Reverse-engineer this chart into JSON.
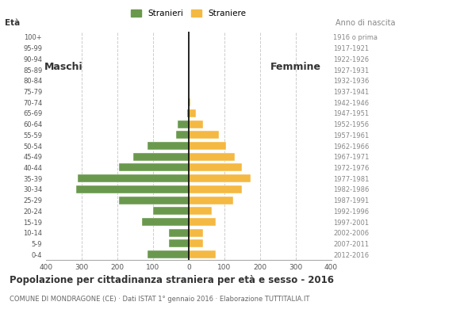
{
  "age_groups": [
    "0-4",
    "5-9",
    "10-14",
    "15-19",
    "20-24",
    "25-29",
    "30-34",
    "35-39",
    "40-44",
    "45-49",
    "50-54",
    "55-59",
    "60-64",
    "65-69",
    "70-74",
    "75-79",
    "80-84",
    "85-89",
    "90-94",
    "95-99",
    "100+"
  ],
  "birth_years": [
    "2012-2016",
    "2007-2011",
    "2002-2006",
    "1997-2001",
    "1992-1996",
    "1987-1991",
    "1982-1986",
    "1977-1981",
    "1972-1976",
    "1967-1971",
    "1962-1966",
    "1957-1961",
    "1952-1956",
    "1947-1951",
    "1942-1946",
    "1937-1941",
    "1932-1936",
    "1927-1931",
    "1922-1926",
    "1917-1921",
    "1916 o prima"
  ],
  "males": [
    115,
    55,
    55,
    130,
    100,
    195,
    315,
    310,
    195,
    155,
    115,
    35,
    30,
    5,
    2,
    0,
    0,
    0,
    0,
    0,
    0
  ],
  "females": [
    75,
    40,
    40,
    75,
    65,
    125,
    150,
    175,
    150,
    130,
    105,
    85,
    40,
    20,
    5,
    0,
    0,
    0,
    0,
    0,
    0
  ],
  "male_color": "#6a994e",
  "female_color": "#f4b942",
  "title": "Popolazione per cittadinanza straniera per età e sesso - 2016",
  "subtitle": "COMUNE DI MONDRAGONE (CE) · Dati ISTAT 1° gennaio 2016 · Elaborazione TUTTITALIA.IT",
  "legend_male": "Stranieri",
  "legend_female": "Straniere",
  "eta_label": "Età",
  "anno_label": "Anno di nascita",
  "maschi_label": "Maschi",
  "femmine_label": "Femmine",
  "xlim": 400,
  "background_color": "#ffffff",
  "grid_color": "#cccccc"
}
